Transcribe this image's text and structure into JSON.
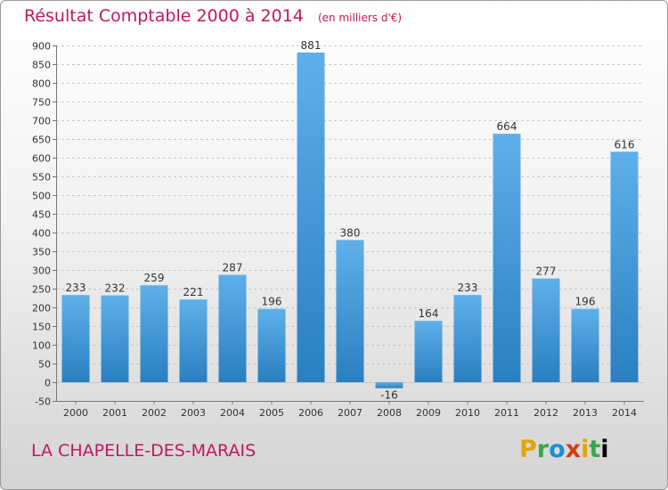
{
  "header": {
    "title": "Résultat Comptable 2000 à 2014",
    "subtitle": "(en milliers d'€)"
  },
  "footer": {
    "commune": "LA CHAPELLE-DES-MARAIS",
    "logo_letters": [
      "P",
      "r",
      "o",
      "x",
      "i",
      "t",
      "i"
    ]
  },
  "colors": {
    "title": "#c2185b",
    "bar_light": "#5fb0ea",
    "bar_dark": "#2a7fc0",
    "grid": "#c8c8c8"
  },
  "chart_data": {
    "type": "bar",
    "title": "Résultat Comptable 2000 à 2014",
    "subtitle": "(en milliers d'€)",
    "categories": [
      "2000",
      "2001",
      "2002",
      "2003",
      "2004",
      "2005",
      "2006",
      "2007",
      "2008",
      "2009",
      "2010",
      "2011",
      "2012",
      "2013",
      "2014"
    ],
    "values": [
      233,
      232,
      259,
      221,
      287,
      196,
      881,
      380,
      -16,
      164,
      233,
      664,
      277,
      196,
      616
    ],
    "value_labels": [
      "233",
      "232",
      "259",
      "221",
      "287",
      "196",
      "881",
      "380",
      "-16",
      "164",
      "233",
      "664",
      "277",
      "196",
      "616"
    ],
    "ylim": [
      -50,
      900
    ],
    "yticks": [
      -50,
      0,
      50,
      100,
      150,
      200,
      250,
      300,
      350,
      400,
      450,
      500,
      550,
      600,
      650,
      700,
      750,
      800,
      850,
      900
    ],
    "grid": true,
    "legend": "none"
  }
}
